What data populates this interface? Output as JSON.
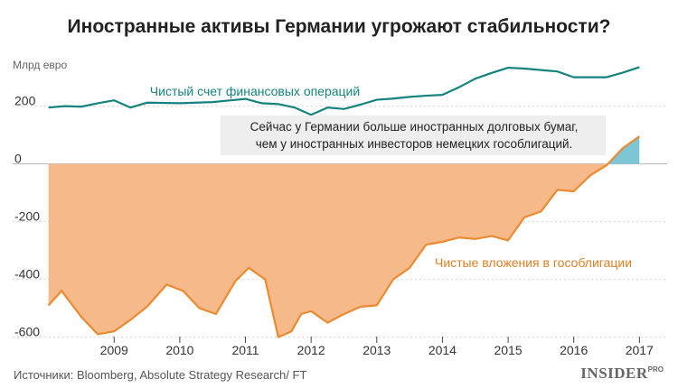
{
  "header": {
    "title": "Иностранные активы Германии угрожают стабильности?"
  },
  "footer": {
    "source": "Источники: Bloomberg, Absolute Strategy Research/ FT"
  },
  "brand": {
    "name": "INSIDER",
    "suffix": "PRO"
  },
  "colors": {
    "current_account": "#14837e",
    "bonds_line": "#ec8a30",
    "bonds_fill": "#f5b98a",
    "positive_fill": "#7dc6d6"
  },
  "chart_data": {
    "type": "area",
    "ylabel": "Млрд евро",
    "ylim": [
      -620,
      380
    ],
    "yticks": [
      -600,
      -400,
      -200,
      0,
      200
    ],
    "xlim": [
      2007.95,
      2017.45
    ],
    "xticks": [
      2009,
      2010,
      2011,
      2012,
      2013,
      2014,
      2015,
      2016,
      2017
    ],
    "grid": "horizontal",
    "series": [
      {
        "name": "Чистый счет финансовых операций",
        "x": [
          2008.0,
          2008.25,
          2008.5,
          2008.75,
          2009.0,
          2009.25,
          2009.5,
          2010.0,
          2010.5,
          2011.0,
          2011.25,
          2011.5,
          2011.75,
          2012.0,
          2012.25,
          2012.5,
          2012.75,
          2013.0,
          2013.25,
          2013.5,
          2013.75,
          2014.0,
          2014.25,
          2014.5,
          2014.75,
          2015.0,
          2015.25,
          2015.5,
          2015.75,
          2016.0,
          2016.25,
          2016.5,
          2016.75,
          2017.0
        ],
        "values": [
          195,
          200,
          198,
          210,
          220,
          195,
          212,
          210,
          214,
          225,
          210,
          207,
          195,
          170,
          195,
          190,
          205,
          222,
          226,
          232,
          236,
          239,
          265,
          295,
          315,
          333,
          330,
          325,
          320,
          300,
          300,
          300,
          316,
          335
        ]
      },
      {
        "name": "Чистые вложения в гособлигации",
        "x": [
          2008.0,
          2008.2,
          2008.5,
          2008.75,
          2009.0,
          2009.25,
          2009.5,
          2009.8,
          2010.05,
          2010.3,
          2010.55,
          2010.85,
          2011.05,
          2011.3,
          2011.5,
          2011.7,
          2011.85,
          2012.0,
          2012.25,
          2012.5,
          2012.75,
          2013.0,
          2013.25,
          2013.5,
          2013.75,
          2014.0,
          2014.25,
          2014.5,
          2014.75,
          2015.0,
          2015.25,
          2015.5,
          2015.75,
          2016.0,
          2016.25,
          2016.5,
          2016.75,
          2017.0
        ],
        "values": [
          -490,
          -440,
          -530,
          -590,
          -580,
          -540,
          -495,
          -418,
          -440,
          -500,
          -520,
          -405,
          -360,
          -400,
          -600,
          -580,
          -520,
          -510,
          -550,
          -520,
          -495,
          -490,
          -400,
          -360,
          -280,
          -270,
          -255,
          -260,
          -250,
          -265,
          -185,
          -165,
          -90,
          -95,
          -40,
          -5,
          55,
          95
        ]
      }
    ],
    "annotations": [
      {
        "text": "Сейчас у Германии больше иностранных долговых бумаг,",
        "line": 1
      },
      {
        "text": "чем у иностранных инвесторов немецких гособлигаций.",
        "line": 2
      }
    ]
  }
}
